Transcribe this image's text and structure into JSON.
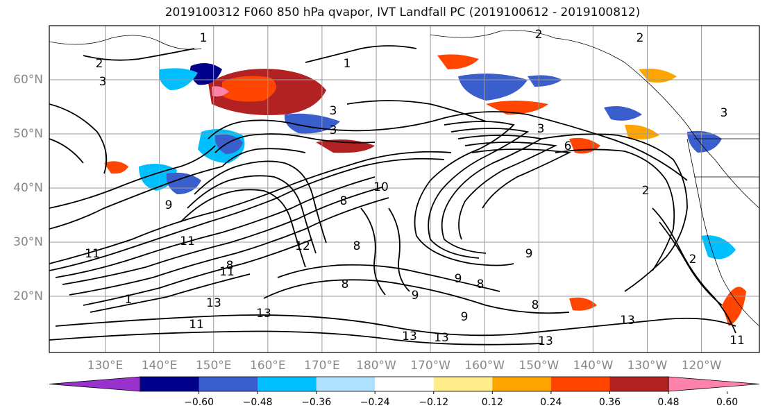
{
  "title": "2019100312 F060 850 hPa qvapor, IVT Landfall PC (2019100612 - 2019100812)",
  "lon_labels": [
    "130°E",
    "140°E",
    "150°E",
    "160°E",
    "170°E",
    "180°W",
    "170°W",
    "160°W",
    "150°W",
    "140°W",
    "130°W",
    "120°W"
  ],
  "lat_labels": [
    "60°N",
    "50°N",
    "40°N",
    "30°N",
    "20°N"
  ],
  "colorbar": {
    "colors": [
      "#9932cc",
      "#00008b",
      "#3a5fcd",
      "#00bfff",
      "#b0e2ff",
      "#ffffff",
      "#ffec8b",
      "#ffa500",
      "#ff4500",
      "#b22222",
      "#ff82ab"
    ],
    "tick_labels": [
      "−0.60",
      "−0.48",
      "−0.36",
      "−0.24",
      "−0.12",
      "0.12",
      "0.24",
      "0.36",
      "0.48",
      "0.60"
    ]
  },
  "contour_labels": [
    {
      "text": "1"
    },
    {
      "text": "2"
    },
    {
      "text": "3"
    },
    {
      "text": "1"
    },
    {
      "text": "3"
    },
    {
      "text": "3"
    },
    {
      "text": "2"
    },
    {
      "text": "2"
    },
    {
      "text": "3"
    },
    {
      "text": "3"
    },
    {
      "text": "6"
    },
    {
      "text": "2"
    },
    {
      "text": "10"
    },
    {
      "text": "8"
    },
    {
      "text": "8"
    },
    {
      "text": "12"
    },
    {
      "text": "9"
    },
    {
      "text": "11"
    },
    {
      "text": "11"
    },
    {
      "text": "13"
    },
    {
      "text": "13"
    },
    {
      "text": "13"
    },
    {
      "text": "13"
    },
    {
      "text": "11"
    },
    {
      "text": "9"
    },
    {
      "text": "8"
    },
    {
      "text": "9"
    },
    {
      "text": "8"
    },
    {
      "text": "9"
    },
    {
      "text": "8"
    },
    {
      "text": "9"
    },
    {
      "text": "13"
    },
    {
      "text": "2"
    },
    {
      "text": "11"
    },
    {
      "text": "1"
    },
    {
      "text": "11"
    },
    {
      "text": "13"
    },
    {
      "text": "8"
    }
  ]
}
